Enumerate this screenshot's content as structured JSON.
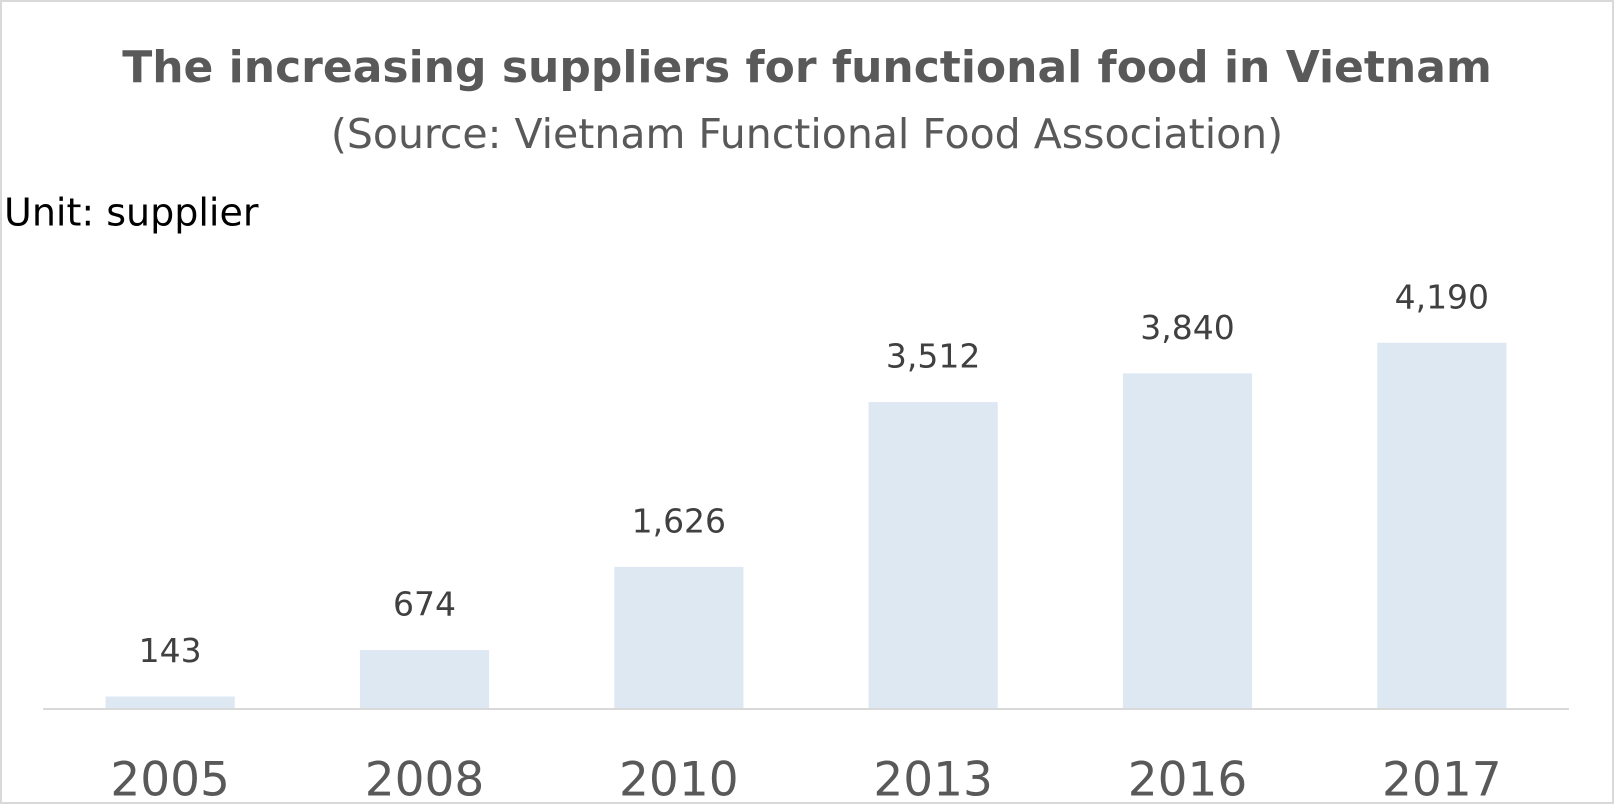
{
  "chart_data": {
    "type": "bar",
    "title": "The increasing suppliers for functional food in Vietnam",
    "subtitle": "(Source: Vietnam Functional Food Association)",
    "unit_label": "Unit: supplier",
    "categories": [
      "2005",
      "2008",
      "2010",
      "2013",
      "2016",
      "2017"
    ],
    "values": [
      143,
      674,
      1626,
      3512,
      3840,
      4190
    ],
    "value_labels": [
      "143",
      "674",
      "1,626",
      "3,512",
      "3,840",
      "4,190"
    ],
    "color": "#dee8f3",
    "ylim": [
      0,
      5000
    ]
  }
}
